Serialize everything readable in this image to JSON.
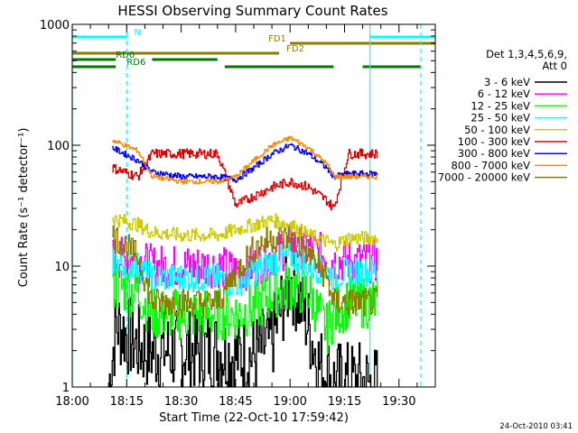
{
  "chart_data": {
    "type": "line",
    "title": "HESSI Observing Summary Count Rates",
    "xlabel": "Start Time (22-Oct-10 17:59:42)",
    "ylabel": "Count Rate (s⁻¹ detector⁻¹)",
    "yscale": "log",
    "ylim": [
      1,
      1000
    ],
    "xlim": [
      "18:00",
      "19:40"
    ],
    "x_ticks": [
      "18:00",
      "18:15",
      "18:30",
      "18:45",
      "19:00",
      "19:15",
      "19:30"
    ],
    "y_ticks": [
      "1",
      "10",
      "100",
      "1000"
    ],
    "grid": false,
    "legend": {
      "position": "right",
      "title_lines": [
        "Det 1,3,4,5,6,9,",
        "Att 0"
      ]
    },
    "series": [
      {
        "name": "3 - 6 keV",
        "color": "#000000",
        "data_gaps": [
          [
            "18:00",
            "18:10"
          ],
          [
            "19:36",
            "19:40"
          ]
        ],
        "x": [
          "18:10",
          "18:12",
          "18:18",
          "18:22",
          "18:30",
          "18:40",
          "18:45",
          "18:50",
          "18:55",
          "18:58",
          "19:00",
          "19:04",
          "19:08",
          "19:12",
          "19:16",
          "19:20",
          "19:24"
        ],
        "y": [
          1,
          3.3,
          2.2,
          2,
          2,
          2,
          1.8,
          1.8,
          2.5,
          5,
          8,
          4,
          1.5,
          1.1,
          1.1,
          1.1,
          1
        ]
      },
      {
        "name": "6 - 12 keV",
        "color": "#ff00ff",
        "data_gaps": [
          [
            "18:00",
            "18:10"
          ],
          [
            "19:36",
            "19:40"
          ]
        ],
        "x": [
          "18:11",
          "18:18",
          "18:22",
          "18:30",
          "18:40",
          "18:45",
          "18:50",
          "18:55",
          "19:00",
          "19:05",
          "19:10",
          "19:12",
          "19:16",
          "19:20",
          "19:24"
        ],
        "y": [
          12,
          11,
          10,
          10,
          10,
          9,
          10,
          12,
          15,
          14,
          12,
          11,
          11,
          11,
          11
        ]
      },
      {
        "name": "12 - 25 keV",
        "color": "#00ff00",
        "data_gaps": [
          [
            "18:00",
            "18:10"
          ],
          [
            "19:36",
            "19:40"
          ]
        ],
        "x": [
          "18:11",
          "18:18",
          "18:22",
          "18:30",
          "18:40",
          "18:45",
          "18:50",
          "18:55",
          "19:00",
          "19:05",
          "19:10",
          "19:12",
          "19:16",
          "19:20",
          "19:24"
        ],
        "y": [
          7,
          6,
          4,
          4,
          4,
          4,
          4.5,
          6,
          7,
          6,
          3,
          4,
          5,
          5,
          5
        ]
      },
      {
        "name": "25 - 50 keV",
        "color": "#00ffff",
        "data_gaps": [
          [
            "18:00",
            "18:10"
          ],
          [
            "19:36",
            "19:40"
          ]
        ],
        "x": [
          "18:11",
          "18:18",
          "18:22",
          "18:30",
          "18:40",
          "18:45",
          "18:50",
          "18:55",
          "19:00",
          "19:05",
          "19:10",
          "19:12",
          "19:16",
          "19:20",
          "19:24"
        ],
        "y": [
          11,
          10,
          8,
          8,
          8,
          7,
          9,
          11,
          12,
          10,
          9,
          8,
          9,
          9,
          9
        ]
      },
      {
        "name": "50 - 100 keV",
        "color": "#cccc00",
        "data_gaps": [
          [
            "18:00",
            "18:10"
          ],
          [
            "19:36",
            "19:40"
          ]
        ],
        "x": [
          "18:11",
          "18:18",
          "18:22",
          "18:30",
          "18:40",
          "18:45",
          "18:50",
          "18:55",
          "19:00",
          "19:05",
          "19:10",
          "19:12",
          "19:16",
          "19:20",
          "19:24"
        ],
        "y": [
          25,
          22,
          19,
          18,
          18,
          20,
          22,
          24,
          22,
          18,
          16,
          15,
          17,
          17,
          17
        ]
      },
      {
        "name": "100 - 300 keV",
        "color": "#dd0000",
        "data_gaps": [
          [
            "18:00",
            "18:10"
          ],
          [
            "19:36",
            "19:40"
          ]
        ],
        "x": [
          "18:11",
          "18:18",
          "18:22",
          "18:30",
          "18:40",
          "18:45",
          "18:50",
          "18:55",
          "19:00",
          "19:05",
          "19:10",
          "19:12",
          "19:16",
          "19:20",
          "19:24"
        ],
        "y": [
          65,
          55,
          85,
          85,
          85,
          32,
          38,
          45,
          50,
          45,
          35,
          30,
          85,
          85,
          85
        ]
      },
      {
        "name": "300 - 800 keV",
        "color": "#0000ff",
        "data_gaps": [
          [
            "18:00",
            "18:10"
          ],
          [
            "19:36",
            "19:40"
          ]
        ],
        "x": [
          "18:11",
          "18:18",
          "18:22",
          "18:30",
          "18:40",
          "18:45",
          "18:50",
          "18:55",
          "19:00",
          "19:05",
          "19:10",
          "19:12",
          "19:16",
          "19:20",
          "19:24"
        ],
        "y": [
          95,
          75,
          60,
          55,
          55,
          52,
          65,
          85,
          100,
          85,
          65,
          55,
          58,
          58,
          58
        ]
      },
      {
        "name": "800 - 7000 keV",
        "color": "#ff8800",
        "data_gaps": [
          [
            "18:00",
            "18:10"
          ],
          [
            "19:36",
            "19:40"
          ]
        ],
        "x": [
          "18:11",
          "18:18",
          "18:22",
          "18:30",
          "18:40",
          "18:45",
          "18:50",
          "18:55",
          "19:00",
          "19:05",
          "19:10",
          "19:12",
          "19:16",
          "19:20",
          "19:24"
        ],
        "y": [
          110,
          90,
          55,
          50,
          50,
          55,
          75,
          100,
          115,
          95,
          70,
          55,
          55,
          55,
          55
        ]
      },
      {
        "name": "7000 - 20000 keV",
        "color": "#8b7d00",
        "data_gaps": [
          [
            "18:00",
            "18:10"
          ],
          [
            "19:36",
            "19:40"
          ]
        ],
        "x": [
          "18:11",
          "18:18",
          "18:22",
          "18:30",
          "18:40",
          "18:45",
          "18:50",
          "18:55",
          "19:00",
          "19:05",
          "19:10",
          "19:12",
          "19:16",
          "19:20",
          "19:24"
        ],
        "y": [
          18,
          12,
          5,
          5,
          5,
          9,
          14,
          17,
          17,
          13,
          8,
          5,
          5,
          5,
          5
        ]
      }
    ],
    "flag_bars": [
      {
        "label": "N",
        "color": "#00ffff",
        "intervals": [
          [
            "18:00",
            "18:15"
          ],
          [
            "19:22",
            "19:40"
          ]
        ]
      },
      {
        "label": "FD1",
        "color": "#8b7d00",
        "intervals": [
          [
            "19:00",
            "19:40"
          ]
        ]
      },
      {
        "label": "FD2",
        "color": "#8b7d00",
        "intervals": [
          [
            "18:00",
            "18:57"
          ]
        ]
      },
      {
        "label": "RD0",
        "color": "#007700",
        "intervals": [
          [
            "18:00",
            "18:12"
          ],
          [
            "18:22",
            "18:40"
          ]
        ]
      },
      {
        "label": "RD6",
        "color": "#007700",
        "intervals": [
          [
            "18:00",
            "18:12"
          ],
          [
            "18:42",
            "19:12"
          ],
          [
            "19:20",
            "19:36"
          ]
        ]
      }
    ],
    "marker_lines": [
      {
        "time": "18:00",
        "color": "#00ffff",
        "style": "solid"
      },
      {
        "time": "18:15",
        "color": "#00ffff",
        "style": "dashed"
      },
      {
        "time": "19:22",
        "color": "#00ffff",
        "style": "solid"
      },
      {
        "time": "19:36",
        "color": "#00ffff",
        "style": "dashed"
      }
    ]
  },
  "footer": {
    "timestamp": "24-Oct-2010 03:41"
  }
}
